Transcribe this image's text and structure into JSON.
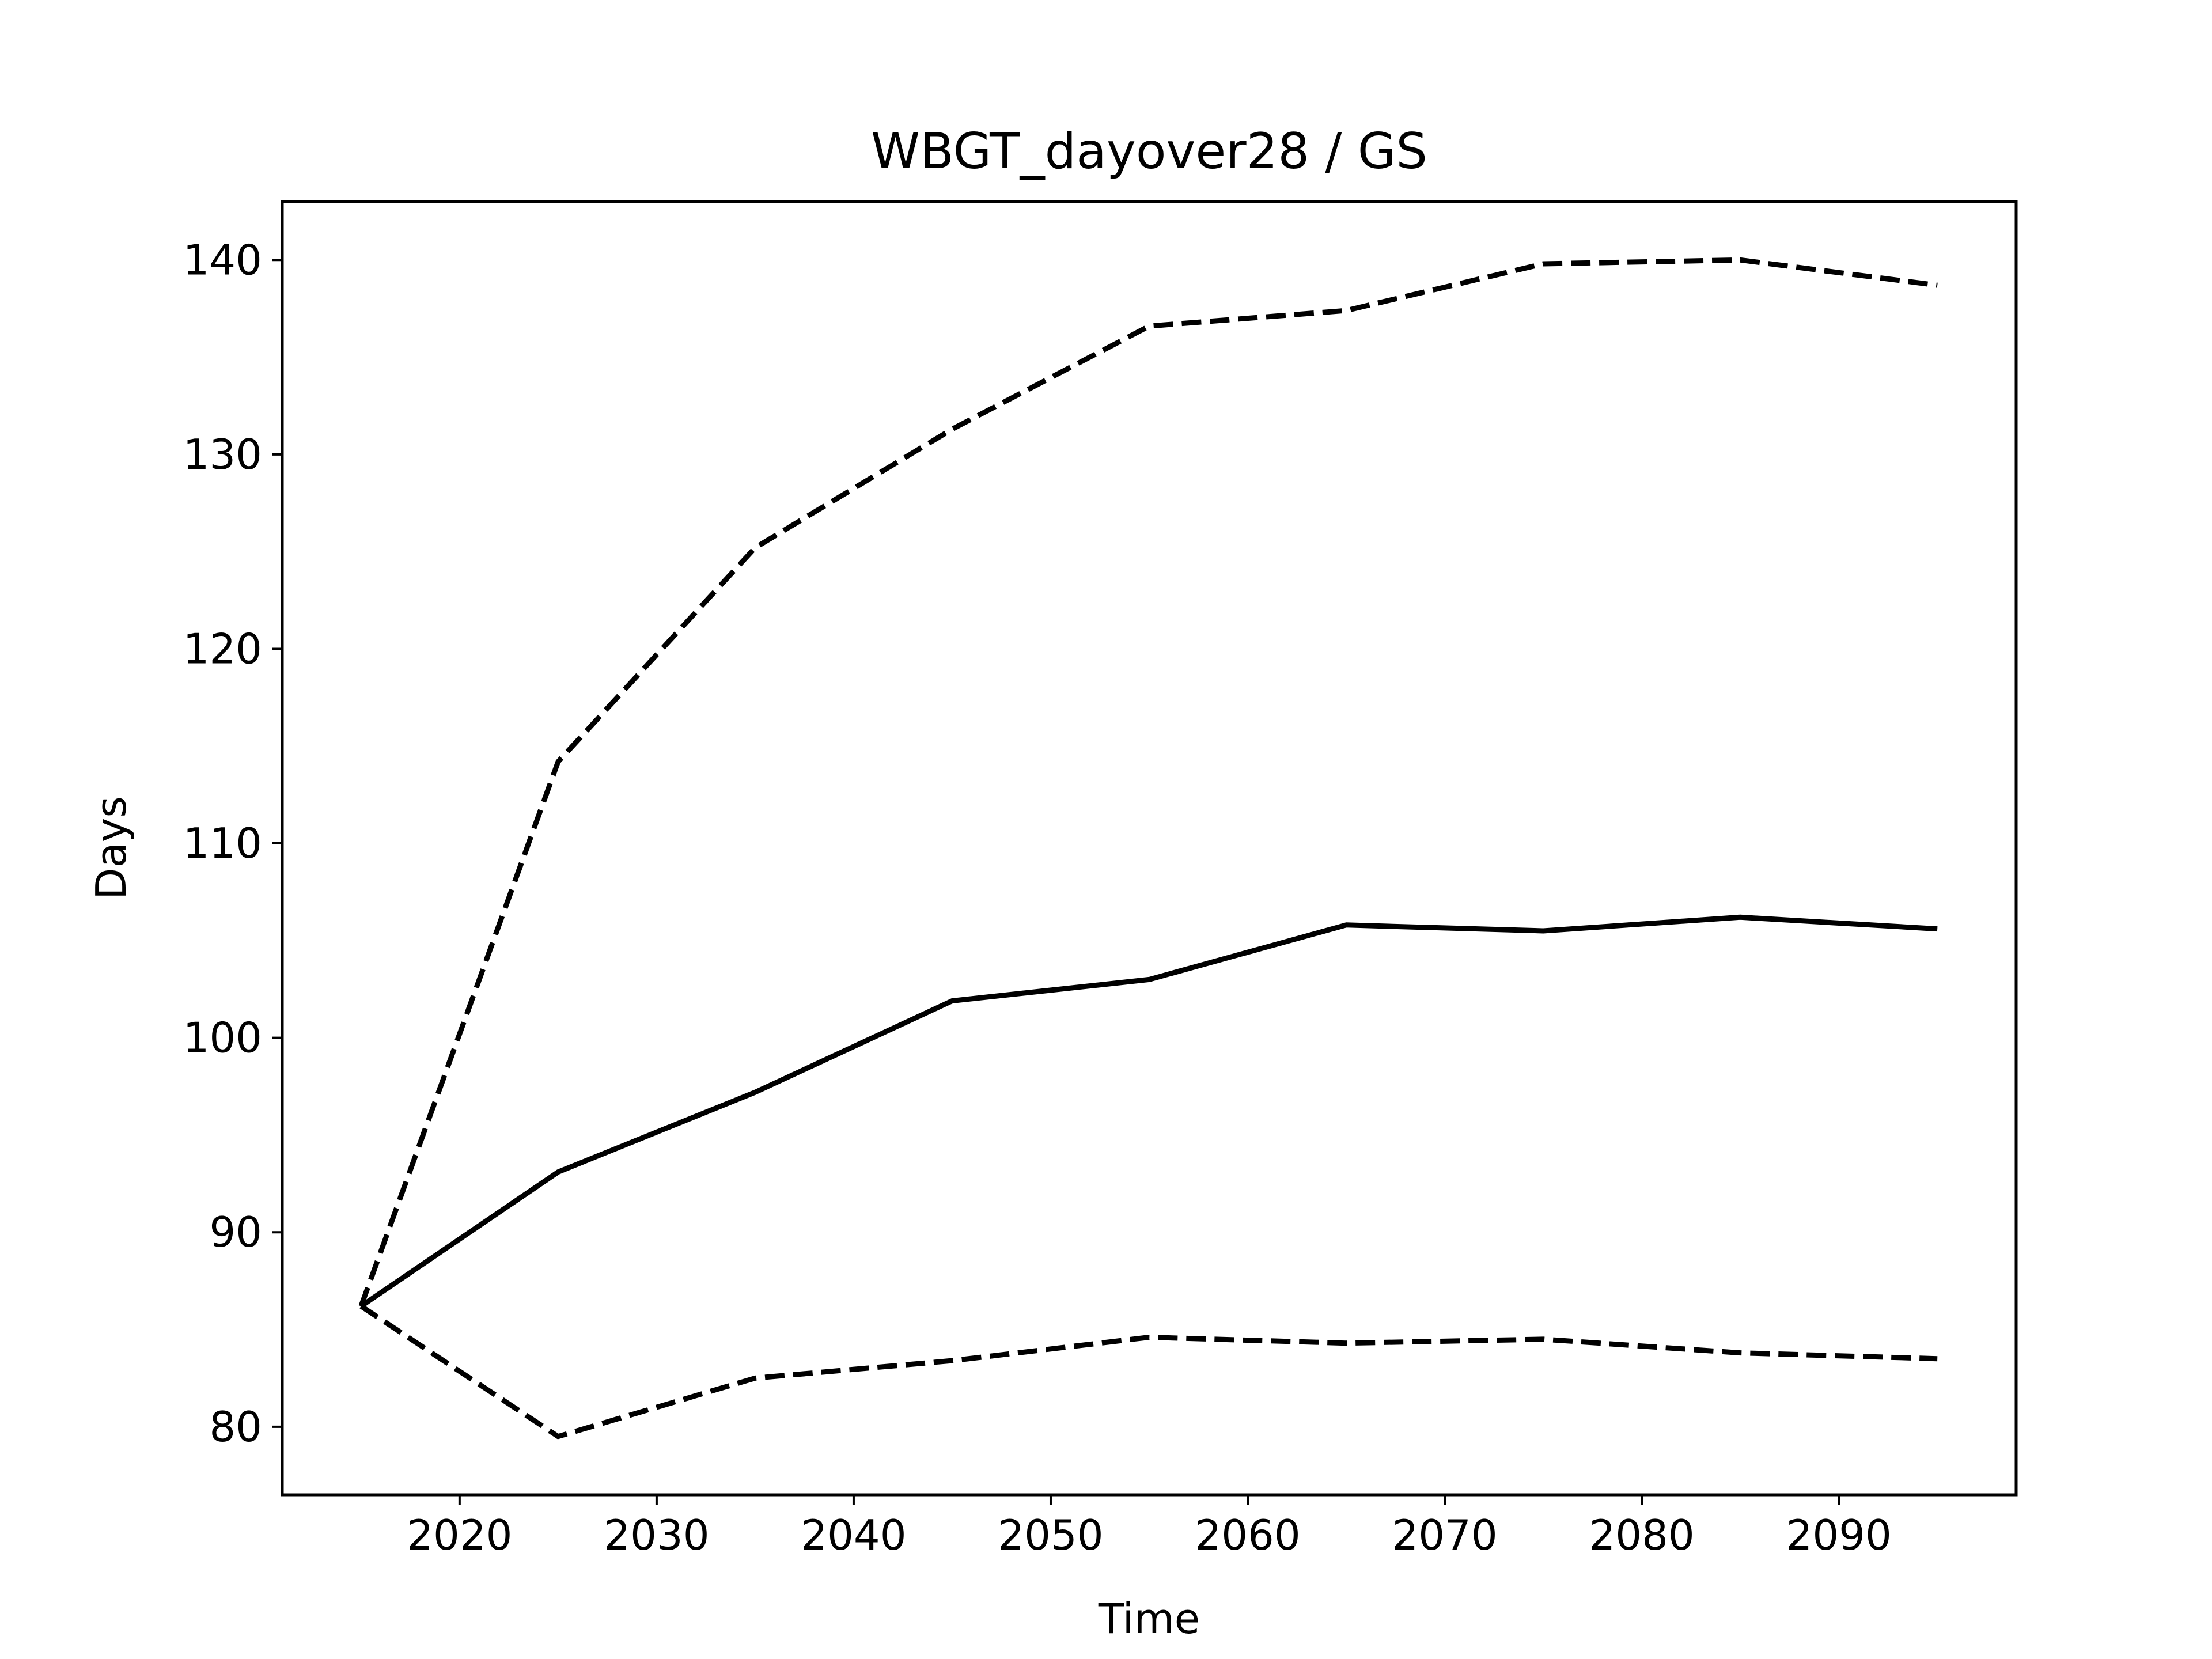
{
  "chart_data": {
    "type": "line",
    "title": "WBGT_dayover28 / GS",
    "xlabel": "Time",
    "ylabel": "Days",
    "xlim": [
      2011,
      2099
    ],
    "ylim": [
      76.5,
      143
    ],
    "xticks": [
      2020,
      2030,
      2040,
      2050,
      2060,
      2070,
      2080,
      2090
    ],
    "yticks": [
      80,
      90,
      100,
      110,
      120,
      130,
      140
    ],
    "grid": false,
    "legend": "none",
    "x": [
      2015,
      2025,
      2035,
      2045,
      2055,
      2065,
      2075,
      2085,
      2095
    ],
    "series": [
      {
        "style": "solid",
        "color": "#000000",
        "values": [
          86.2,
          93.1,
          97.2,
          101.9,
          103.0,
          105.8,
          105.5,
          106.2,
          105.6
        ]
      },
      {
        "style": "dashed",
        "color": "#000000",
        "values": [
          86.2,
          114.2,
          125.2,
          131.3,
          136.6,
          137.4,
          139.8,
          140.0,
          138.7
        ]
      },
      {
        "style": "dashed",
        "color": "#000000",
        "values": [
          86.2,
          79.5,
          82.5,
          83.4,
          84.6,
          84.3,
          84.5,
          83.8,
          83.5
        ]
      }
    ]
  }
}
